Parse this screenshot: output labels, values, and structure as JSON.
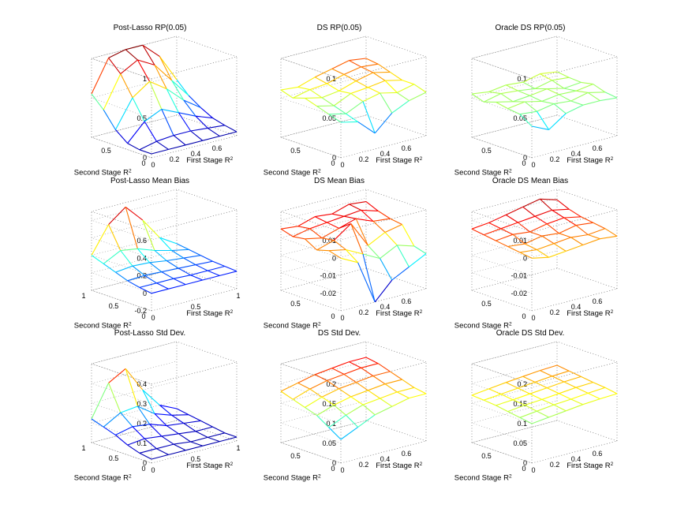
{
  "figure": {
    "x_axis_label": "First Stage R",
    "y_axis_label": "Second Stage R",
    "axis_label_superscript": "2",
    "surface_colormap": "jet",
    "grid": "dotted",
    "colormap_colors": [
      "#00008f",
      "#0000ff",
      "#00ffff",
      "#ffff00",
      "#ff0000",
      "#800000"
    ]
  },
  "chart_data": [
    {
      "type": "surface",
      "title": "Post-Lasso RP(0.05)",
      "xlabel": "First Stage R²",
      "ylabel": "Second Stage R²",
      "xticks": [
        "0",
        "0.2",
        "0.4",
        "0.6"
      ],
      "yticks": [
        "0",
        "0.5"
      ],
      "zticks": [
        "0",
        "0.5",
        "1"
      ],
      "zlim": [
        0,
        1
      ],
      "xlim": [
        0,
        0.8
      ],
      "ylim": [
        0,
        0.8
      ],
      "x": [
        0,
        0.16,
        0.32,
        0.48,
        0.64,
        0.8
      ],
      "y": [
        0,
        0.16,
        0.32,
        0.48,
        0.64,
        0.8
      ],
      "z": [
        [
          0.05,
          0.05,
          0.05,
          0.05,
          0.05,
          0.05
        ],
        [
          0.05,
          0.1,
          0.12,
          0.12,
          0.1,
          0.08
        ],
        [
          0.08,
          0.3,
          0.4,
          0.3,
          0.2,
          0.12
        ],
        [
          0.2,
          0.55,
          0.7,
          0.55,
          0.35,
          0.2
        ],
        [
          0.4,
          0.8,
          0.92,
          0.8,
          0.55,
          0.3
        ],
        [
          0.55,
          0.95,
          1.0,
          1.0,
          0.8,
          0.45
        ]
      ]
    },
    {
      "type": "surface",
      "title": "DS RP(0.05)",
      "xlabel": "First Stage R²",
      "ylabel": "Second Stage R²",
      "xticks": [
        "0",
        "0.2",
        "0.4",
        "0.6"
      ],
      "yticks": [
        "0",
        "0.5"
      ],
      "zticks": [
        "0",
        "0.05",
        "0.1"
      ],
      "zlim": [
        0,
        0.1
      ],
      "xlim": [
        0,
        0.8
      ],
      "ylim": [
        0,
        0.8
      ],
      "x": [
        0,
        0.16,
        0.32,
        0.48,
        0.64,
        0.8
      ],
      "y": [
        0,
        0.16,
        0.32,
        0.48,
        0.64,
        0.8
      ],
      "z": [
        [
          0.045,
          0.04,
          0.02,
          0.04,
          0.05,
          0.055
        ],
        [
          0.05,
          0.045,
          0.055,
          0.06,
          0.055,
          0.06
        ],
        [
          0.055,
          0.05,
          0.06,
          0.062,
          0.065,
          0.06
        ],
        [
          0.06,
          0.055,
          0.058,
          0.065,
          0.07,
          0.065
        ],
        [
          0.055,
          0.06,
          0.062,
          0.068,
          0.072,
          0.07
        ],
        [
          0.06,
          0.058,
          0.065,
          0.07,
          0.075,
          0.072
        ]
      ]
    },
    {
      "type": "surface",
      "title": "Oracle DS RP(0.05)",
      "xlabel": "First Stage R²",
      "ylabel": "Second Stage R²",
      "xticks": [
        "0",
        "0.2",
        "0.4",
        "0.6"
      ],
      "yticks": [
        "0",
        "0.5"
      ],
      "zticks": [
        "0",
        "0.05",
        "0.1"
      ],
      "zlim": [
        0,
        0.1
      ],
      "xlim": [
        0,
        0.8
      ],
      "ylim": [
        0,
        0.8
      ],
      "x": [
        0,
        0.16,
        0.32,
        0.48,
        0.64,
        0.8
      ],
      "y": [
        0,
        0.16,
        0.32,
        0.48,
        0.64,
        0.8
      ],
      "z": [
        [
          0.04,
          0.03,
          0.045,
          0.05,
          0.05,
          0.048
        ],
        [
          0.05,
          0.048,
          0.052,
          0.05,
          0.055,
          0.05
        ],
        [
          0.052,
          0.055,
          0.05,
          0.053,
          0.052,
          0.055
        ],
        [
          0.055,
          0.05,
          0.052,
          0.055,
          0.05,
          0.052
        ],
        [
          0.05,
          0.055,
          0.053,
          0.05,
          0.055,
          0.053
        ],
        [
          0.055,
          0.052,
          0.055,
          0.053,
          0.058,
          0.055
        ]
      ]
    },
    {
      "type": "surface",
      "title": "Post-Lasso Mean Bias",
      "xlabel": "First Stage R²",
      "ylabel": "Second Stage R²",
      "xticks": [
        "0",
        "0.5",
        "1"
      ],
      "yticks": [
        "0",
        "0.5",
        "1"
      ],
      "zticks": [
        "-0.2",
        "0",
        "0.2",
        "0.4",
        "0.6"
      ],
      "zlim": [
        -0.2,
        0.7
      ],
      "xlim": [
        0,
        1
      ],
      "ylim": [
        0,
        1
      ],
      "x": [
        0,
        0.2,
        0.4,
        0.6,
        0.8,
        1
      ],
      "y": [
        0,
        0.2,
        0.4,
        0.6,
        0.8,
        1
      ],
      "z": [
        [
          0.0,
          0.0,
          0.0,
          0.0,
          0.0,
          0.0
        ],
        [
          0.02,
          0.02,
          0.02,
          0.01,
          0.01,
          0.01
        ],
        [
          0.05,
          0.06,
          0.05,
          0.04,
          0.03,
          0.02
        ],
        [
          0.1,
          0.12,
          0.11,
          0.08,
          0.06,
          0.04
        ],
        [
          0.15,
          0.25,
          0.22,
          0.15,
          0.1,
          0.06
        ],
        [
          0.2,
          0.5,
          0.65,
          0.45,
          0.2,
          0.08
        ]
      ]
    },
    {
      "type": "surface",
      "title": "DS Mean Bias",
      "xlabel": "First Stage R²",
      "ylabel": "Second Stage R²",
      "xticks": [
        "0",
        "0.2",
        "0.4",
        "0.6"
      ],
      "yticks": [
        "0",
        "0.5"
      ],
      "zticks": [
        "-0.02",
        "-0.01",
        "0",
        "0.01"
      ],
      "zlim": [
        -0.03,
        0.015
      ],
      "xlim": [
        0,
        0.8
      ],
      "ylim": [
        0,
        0.8
      ],
      "x": [
        0,
        0.16,
        0.32,
        0.48,
        0.64,
        0.8
      ],
      "y": [
        0,
        0.16,
        0.32,
        0.48,
        0.64,
        0.8
      ],
      "z": [
        [
          0.0,
          -0.005,
          -0.03,
          -0.02,
          -0.015,
          -0.01
        ],
        [
          0.002,
          0.0,
          -0.005,
          -0.01,
          -0.005,
          -0.008
        ],
        [
          0.0,
          0.003,
          0.01,
          -0.005,
          0.0,
          0.002
        ],
        [
          0.004,
          0.002,
          0.005,
          0.008,
          0.004,
          0.003
        ],
        [
          0.003,
          0.005,
          0.006,
          0.007,
          0.008,
          0.005
        ],
        [
          0.005,
          0.004,
          0.007,
          0.006,
          0.009,
          0.008
        ]
      ]
    },
    {
      "type": "surface",
      "title": "Oracle DS Mean Bias",
      "xlabel": "First Stage R²",
      "ylabel": "Second Stage R²",
      "xticks": [
        "0",
        "0.2",
        "0.4",
        "0.6"
      ],
      "yticks": [
        "0",
        "0.5"
      ],
      "zticks": [
        "-0.02",
        "-0.01",
        "0",
        "0.01"
      ],
      "zlim": [
        -0.03,
        0.015
      ],
      "xlim": [
        0,
        0.8
      ],
      "ylim": [
        0,
        0.8
      ],
      "x": [
        0,
        0.16,
        0.32,
        0.48,
        0.64,
        0.8
      ],
      "y": [
        0,
        0.16,
        0.32,
        0.48,
        0.64,
        0.8
      ],
      "z": [
        [
          0.0,
          -0.002,
          -0.001,
          0.0,
          0.001,
          0.0
        ],
        [
          0.001,
          0.0,
          0.001,
          0.002,
          0.001,
          0.002
        ],
        [
          0.002,
          0.001,
          0.003,
          0.002,
          0.004,
          0.003
        ],
        [
          0.003,
          0.004,
          0.003,
          0.005,
          0.006,
          0.004
        ],
        [
          0.004,
          0.005,
          0.006,
          0.007,
          0.008,
          0.006
        ],
        [
          0.005,
          0.006,
          0.008,
          0.01,
          0.012,
          0.009
        ]
      ]
    },
    {
      "type": "surface",
      "title": "Post-Lasso Std Dev.",
      "xlabel": "First Stage R²",
      "ylabel": "Second Stage R²",
      "xticks": [
        "0",
        "0.5",
        "1"
      ],
      "yticks": [
        "0",
        "0.5",
        "1"
      ],
      "zticks": [
        "0",
        "0.1",
        "0.2",
        "0.3",
        "0.4"
      ],
      "zlim": [
        0,
        0.4
      ],
      "xlim": [
        0,
        1
      ],
      "ylim": [
        0,
        1
      ],
      "x": [
        0,
        0.2,
        0.4,
        0.6,
        0.8,
        1
      ],
      "y": [
        0,
        0.2,
        0.4,
        0.6,
        0.8,
        1
      ],
      "z": [
        [
          0.02,
          0.02,
          0.02,
          0.02,
          0.02,
          0.02
        ],
        [
          0.03,
          0.03,
          0.03,
          0.02,
          0.02,
          0.02
        ],
        [
          0.05,
          0.06,
          0.05,
          0.04,
          0.03,
          0.03
        ],
        [
          0.08,
          0.1,
          0.09,
          0.06,
          0.05,
          0.04
        ],
        [
          0.1,
          0.15,
          0.16,
          0.1,
          0.07,
          0.05
        ],
        [
          0.12,
          0.28,
          0.33,
          0.2,
          0.1,
          0.06
        ]
      ]
    },
    {
      "type": "surface",
      "title": "DS Std Dev.",
      "xlabel": "First Stage R²",
      "ylabel": "Second Stage R²",
      "xticks": [
        "0",
        "0.2",
        "0.4",
        "0.6"
      ],
      "yticks": [
        "0",
        "0.5"
      ],
      "zticks": [
        "0",
        "0.05",
        "0.1",
        "0.15",
        "0.2"
      ],
      "zlim": [
        0,
        0.2
      ],
      "xlim": [
        0,
        0.8
      ],
      "ylim": [
        0,
        0.8
      ],
      "x": [
        0,
        0.16,
        0.32,
        0.48,
        0.64,
        0.8
      ],
      "y": [
        0,
        0.16,
        0.32,
        0.48,
        0.64,
        0.8
      ],
      "z": [
        [
          0.06,
          0.08,
          0.1,
          0.11,
          0.12,
          0.12
        ],
        [
          0.08,
          0.1,
          0.115,
          0.12,
          0.125,
          0.125
        ],
        [
          0.1,
          0.115,
          0.125,
          0.13,
          0.135,
          0.135
        ],
        [
          0.11,
          0.125,
          0.135,
          0.14,
          0.145,
          0.145
        ],
        [
          0.12,
          0.135,
          0.145,
          0.15,
          0.155,
          0.155
        ],
        [
          0.13,
          0.14,
          0.15,
          0.155,
          0.16,
          0.16
        ]
      ]
    },
    {
      "type": "surface",
      "title": "Oracle DS Std Dev.",
      "xlabel": "First Stage R²",
      "ylabel": "Second Stage R²",
      "xticks": [
        "0",
        "0.2",
        "0.4",
        "0.6"
      ],
      "yticks": [
        "0",
        "0.5"
      ],
      "zticks": [
        "0",
        "0.05",
        "0.1",
        "0.15",
        "0.2"
      ],
      "zlim": [
        0,
        0.2
      ],
      "xlim": [
        0,
        0.8
      ],
      "ylim": [
        0,
        0.8
      ],
      "x": [
        0,
        0.16,
        0.32,
        0.48,
        0.64,
        0.8
      ],
      "y": [
        0,
        0.16,
        0.32,
        0.48,
        0.64,
        0.8
      ],
      "z": [
        [
          0.1,
          0.105,
          0.11,
          0.115,
          0.118,
          0.12
        ],
        [
          0.105,
          0.11,
          0.115,
          0.118,
          0.122,
          0.125
        ],
        [
          0.11,
          0.115,
          0.118,
          0.122,
          0.126,
          0.128
        ],
        [
          0.115,
          0.118,
          0.122,
          0.126,
          0.13,
          0.132
        ],
        [
          0.118,
          0.122,
          0.126,
          0.13,
          0.134,
          0.136
        ],
        [
          0.12,
          0.125,
          0.13,
          0.134,
          0.138,
          0.14
        ]
      ]
    }
  ]
}
